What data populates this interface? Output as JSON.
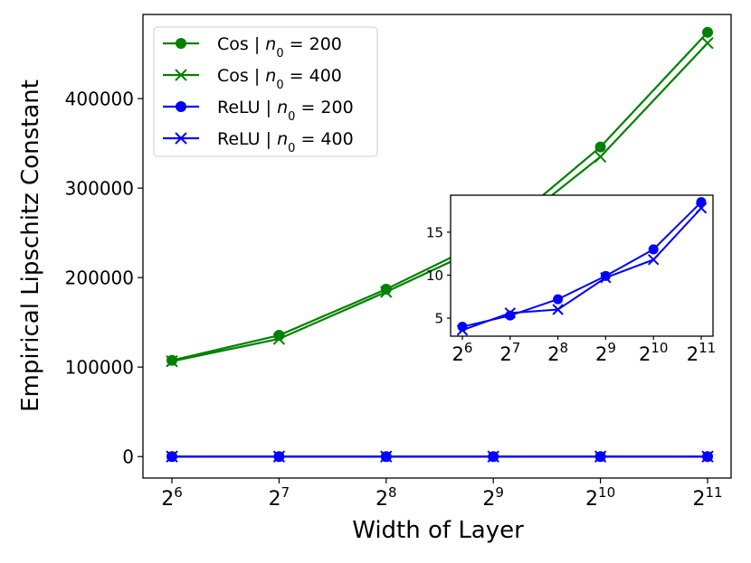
{
  "chart_data": [
    {
      "type": "line",
      "xlabel": "Width of Layer",
      "ylabel": "Empirical Lipschitz Constant",
      "xscale": "log2",
      "x": [
        64,
        128,
        256,
        512,
        1024,
        2048
      ],
      "xticks": [
        {
          "base": "2",
          "exp": "6"
        },
        {
          "base": "2",
          "exp": "7"
        },
        {
          "base": "2",
          "exp": "8"
        },
        {
          "base": "2",
          "exp": "9"
        },
        {
          "base": "2",
          "exp": "10"
        },
        {
          "base": "2",
          "exp": "11"
        }
      ],
      "yticks": [
        "0",
        "100000",
        "200000",
        "300000",
        "400000"
      ],
      "ylim": [
        -24000,
        494000
      ],
      "grid": false,
      "legend_position": "top-left",
      "series": [
        {
          "name": "Cos | n0 = 200",
          "label_main": "Cos | ",
          "label_var": "n",
          "label_sub": "0",
          "label_eq": " = 200",
          "color": "#008000",
          "marker": "circle",
          "values": [
            107500,
            135500,
            187000,
            245500,
            346000,
            474000
          ]
        },
        {
          "name": "Cos | n0 = 400",
          "label_main": "Cos | ",
          "label_var": "n",
          "label_sub": "0",
          "label_eq": " = 400",
          "color": "#008000",
          "marker": "x",
          "values": [
            106500,
            131500,
            184000,
            240000,
            335000,
            462000
          ]
        },
        {
          "name": "ReLU | n0 = 200",
          "label_main": "ReLU | ",
          "label_var": "n",
          "label_sub": "0",
          "label_eq": " = 200",
          "color": "#0000ff",
          "marker": "circle",
          "values": [
            4,
            5.3,
            7.2,
            9.9,
            13.0,
            18.5
          ]
        },
        {
          "name": "ReLU | n0 = 400",
          "label_main": "ReLU | ",
          "label_var": "n",
          "label_sub": "0",
          "label_eq": " = 400",
          "color": "#0000ff",
          "marker": "x",
          "values": [
            3.6,
            5.6,
            6.0,
            9.7,
            11.8,
            17.8
          ]
        }
      ]
    },
    {
      "type": "line",
      "role": "inset",
      "xscale": "log2",
      "x": [
        64,
        128,
        256,
        512,
        1024,
        2048
      ],
      "xticks": [
        {
          "base": "2",
          "exp": "6"
        },
        {
          "base": "2",
          "exp": "7"
        },
        {
          "base": "2",
          "exp": "8"
        },
        {
          "base": "2",
          "exp": "9"
        },
        {
          "base": "2",
          "exp": "10"
        },
        {
          "base": "2",
          "exp": "11"
        }
      ],
      "yticks": [
        "5",
        "10",
        "15"
      ],
      "ylim": [
        2.9,
        19.3
      ],
      "series": [
        {
          "name": "ReLU | n0 = 200",
          "color": "#0000ff",
          "marker": "circle",
          "values": [
            4,
            5.3,
            7.2,
            9.9,
            13.0,
            18.5
          ]
        },
        {
          "name": "ReLU | n0 = 400",
          "color": "#0000ff",
          "marker": "x",
          "values": [
            3.6,
            5.6,
            6.0,
            9.7,
            11.8,
            17.8
          ]
        }
      ]
    }
  ]
}
